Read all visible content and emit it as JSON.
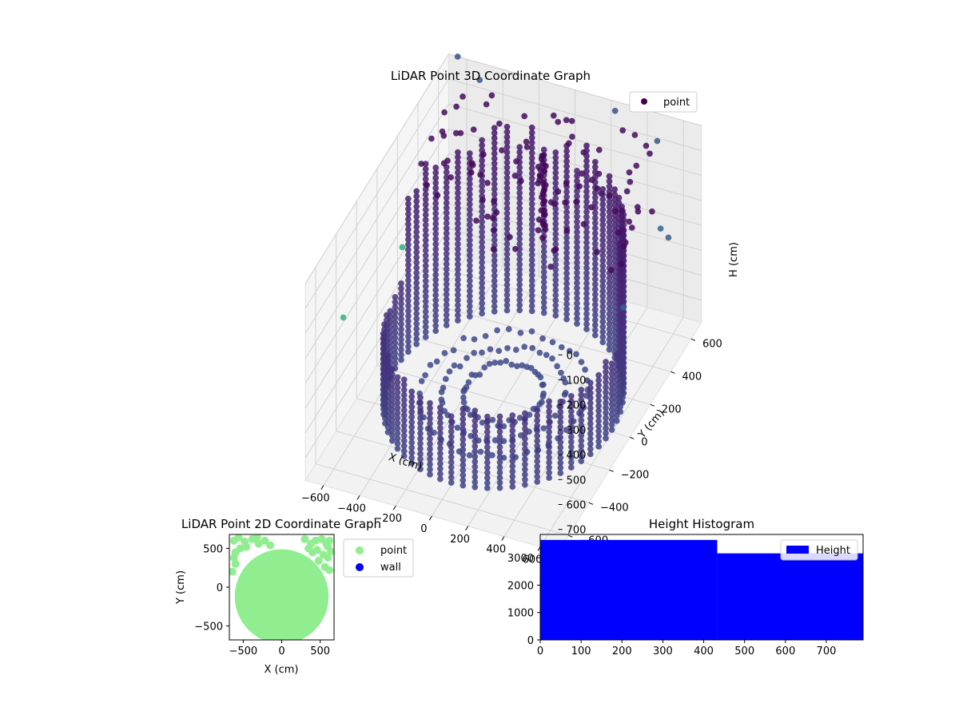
{
  "chart_data": [
    {
      "type": "scatter",
      "projection": "3d",
      "title": "LiDAR Point 3D Coordinate Graph",
      "xlabel": "X (cm)",
      "ylabel": "Y (cm)",
      "zlabel": "H (cm)",
      "xticks": [
        -600,
        -400,
        -200,
        0,
        200,
        400,
        600
      ],
      "yticks": [
        -600,
        -400,
        -200,
        0,
        200,
        400,
        600
      ],
      "zticks": [
        0,
        100,
        200,
        300,
        400,
        500,
        600,
        700
      ],
      "xlim": [
        -700,
        700
      ],
      "ylim": [
        -700,
        700
      ],
      "zlim": [
        0,
        790
      ],
      "z_inverted": true,
      "colormap": "viridis",
      "grid": true,
      "legend": {
        "position": "top-right",
        "entries": [
          {
            "label": "point",
            "color": "#440154"
          }
        ]
      },
      "series": [
        {
          "name": "point",
          "description": "cylindrical wall of points, radius ~600 cm, heights 0-700 cm, plus scattered outliers",
          "ring_radius": 600,
          "ring_height_range": [
            0,
            700
          ],
          "central_column": {
            "x": 0,
            "y": 0,
            "height_range": [
              200,
              700
            ]
          },
          "outliers": [
            {
              "x": -650,
              "y": 700,
              "z": 0
            },
            {
              "x": -500,
              "y": 650,
              "z": 30
            },
            {
              "x": 250,
              "y": 650,
              "z": 0
            },
            {
              "x": 500,
              "y": 620,
              "z": 50
            },
            {
              "x": 700,
              "y": 300,
              "z": 150
            },
            {
              "x": 720,
              "y": -100,
              "z": 200
            },
            {
              "x": 800,
              "y": 200,
              "z": 100
            },
            {
              "x": -900,
              "y": 600,
              "z": 750
            },
            {
              "x": 900,
              "y": -900,
              "z": 790
            },
            {
              "x": -1000,
              "y": 200,
              "z": 790
            }
          ]
        }
      ]
    },
    {
      "type": "scatter",
      "title": "LiDAR Point 2D Coordinate Graph",
      "xlabel": "X (cm)",
      "ylabel": "Y (cm)",
      "xticks": [
        -500,
        0,
        500
      ],
      "yticks": [
        -500,
        0,
        500
      ],
      "xlim": [
        -680,
        680
      ],
      "ylim": [
        -680,
        680
      ],
      "legend": {
        "position": "outside-right",
        "entries": [
          {
            "label": "point",
            "color": "#90ee90"
          },
          {
            "label": "wall",
            "color": "#0000ff"
          }
        ]
      },
      "series": [
        {
          "name": "point",
          "color": "#90ee90",
          "disc_center": [
            0,
            -120
          ],
          "disc_radius": 610,
          "extra_points": [
            [
              -620,
              600
            ],
            [
              -560,
              640
            ],
            [
              -480,
              590
            ],
            [
              -380,
              620
            ],
            [
              -300,
              560
            ],
            [
              -540,
              500
            ],
            [
              -460,
              520
            ],
            [
              -600,
              450
            ],
            [
              -320,
              640
            ],
            [
              -220,
              600
            ],
            [
              -150,
              540
            ],
            [
              -600,
              300
            ],
            [
              -640,
              200
            ],
            [
              -620,
              380
            ],
            [
              300,
              620
            ],
            [
              380,
              560
            ],
            [
              440,
              600
            ],
            [
              520,
              620
            ],
            [
              580,
              560
            ],
            [
              620,
              600
            ],
            [
              460,
              480
            ],
            [
              540,
              420
            ],
            [
              600,
              380
            ],
            [
              480,
              340
            ],
            [
              560,
              260
            ],
            [
              620,
              220
            ],
            [
              400,
              450
            ],
            [
              350,
              500
            ],
            [
              640,
              460
            ],
            [
              600,
              520
            ]
          ]
        },
        {
          "name": "wall",
          "color": "#0000ff",
          "points": []
        }
      ]
    },
    {
      "type": "bar",
      "title": "Height Histogram",
      "xlabel": "",
      "ylabel": "",
      "xticks": [
        0,
        100,
        200,
        300,
        400,
        500,
        600,
        700
      ],
      "yticks": [
        0,
        1000,
        2000,
        3000
      ],
      "xlim": [
        0,
        790
      ],
      "ylim": [
        0,
        3850
      ],
      "legend": {
        "position": "top-right",
        "entries": [
          {
            "label": "Height",
            "color": "#0000ff"
          }
        ]
      },
      "series": [
        {
          "name": "Height",
          "color": "#0000ff",
          "bins": [
            {
              "from": 0,
              "to": 433,
              "count": 3650
            },
            {
              "from": 433,
              "to": 790,
              "count": 3160
            }
          ]
        }
      ]
    }
  ]
}
